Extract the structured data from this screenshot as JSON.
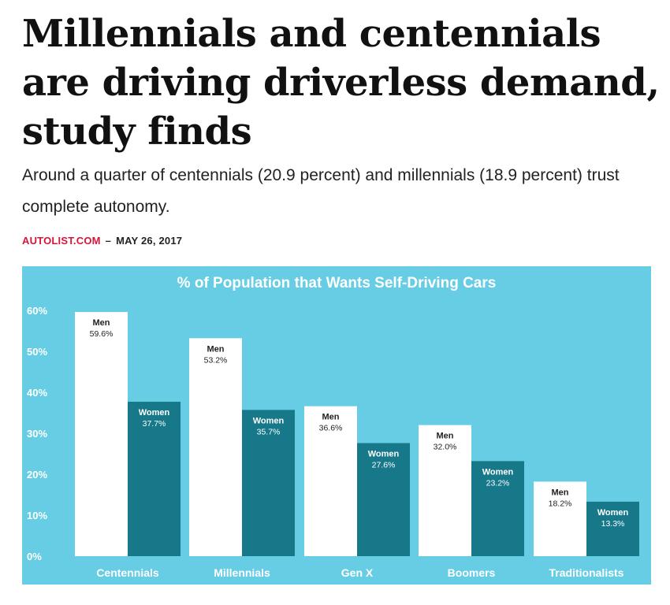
{
  "article": {
    "headline": "Millennials and centennials are driving driverless demand, study finds",
    "dek": "Around a quarter of centennials (20.9 percent) and millennials (18.9 percent) trust complete autonomy.",
    "source": "AUTOLIST.COM",
    "separator": "–",
    "date": "MAY 26, 2017"
  },
  "colors": {
    "background": "#67cde4",
    "men": "#ffffff",
    "women": "#17788a",
    "title": "#ffffff",
    "category_label": "#ffffff",
    "men_label": "#222222",
    "women_label": "#ffffff"
  },
  "chart_data": {
    "type": "bar",
    "title": "% of Population that Wants Self-Driving Cars",
    "categories": [
      "Centennials",
      "Millennials",
      "Gen X",
      "Boomers",
      "Traditionalists"
    ],
    "series": [
      {
        "name": "Men",
        "values": [
          59.6,
          53.2,
          36.6,
          32.0,
          18.2
        ]
      },
      {
        "name": "Women",
        "values": [
          37.7,
          35.7,
          27.6,
          23.2,
          13.3
        ]
      }
    ],
    "data_labels": {
      "Men": [
        "59.6%",
        "53.2%",
        "36.6%",
        "32.0%",
        "18.2%"
      ],
      "Women": [
        "37.7%",
        "35.7%",
        "27.6%",
        "23.2%",
        "13.3%"
      ]
    },
    "y_ticks": [
      "0%",
      "10%",
      "20%",
      "30%",
      "40%",
      "50%",
      "60%"
    ],
    "ylim": [
      0,
      60
    ],
    "xlabel": "",
    "ylabel": "",
    "grid": false,
    "legend": "none"
  }
}
